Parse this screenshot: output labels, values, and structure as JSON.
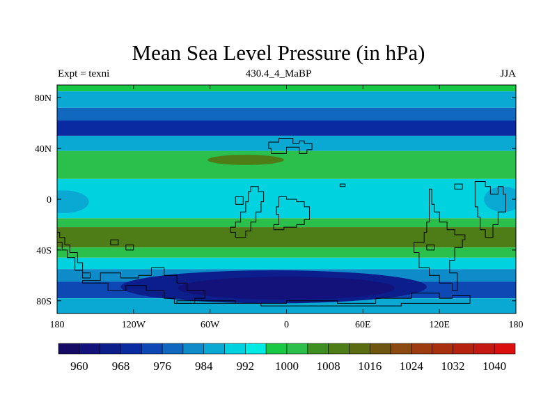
{
  "title": "Mean Sea Level Pressure (in hPa)",
  "left_label": "Expt = texni",
  "center_label": "430.4_4_MaBP",
  "right_label": "JJA",
  "chart_data": {
    "type": "heatmap",
    "title": "Mean Sea Level Pressure (in hPa)",
    "x_ticks": [
      "180",
      "120W",
      "60W",
      "0",
      "60E",
      "120E",
      "180"
    ],
    "y_ticks": [
      "80N",
      "40N",
      "0",
      "40S",
      "80S"
    ],
    "xlim": [
      -180,
      180
    ],
    "ylim": [
      -90,
      90
    ],
    "colorbar": {
      "levels": [
        956,
        960,
        964,
        968,
        972,
        976,
        980,
        984,
        988,
        992,
        996,
        1000,
        1004,
        1008,
        1012,
        1016,
        1020,
        1024,
        1028,
        1032,
        1036,
        1040,
        1044
      ],
      "labels": [
        "960",
        "968",
        "976",
        "984",
        "992",
        "1000",
        "1008",
        "1016",
        "1024",
        "1032",
        "1040"
      ],
      "colors": [
        "#160b64",
        "#12127a",
        "#0c1d8c",
        "#0a2aa2",
        "#0d48b4",
        "#1068bf",
        "#0d8cc9",
        "#0aa9d4",
        "#00d2e0",
        "#00ebe3",
        "#18c944",
        "#2bbf4b",
        "#3f8e22",
        "#4e7d18",
        "#5b6b10",
        "#6e5610",
        "#8a4a10",
        "#9c3c10",
        "#a8300f",
        "#b5230f",
        "#c41812",
        "#dc0f0f"
      ]
    },
    "bands": [
      {
        "lat_from": 90,
        "lat_to": 85,
        "value": 998
      },
      {
        "lat_from": 85,
        "lat_to": 72,
        "value": 986
      },
      {
        "lat_from": 72,
        "lat_to": 62,
        "value": 978
      },
      {
        "lat_from": 62,
        "lat_to": 50,
        "value": 970
      },
      {
        "lat_from": 50,
        "lat_to": 38,
        "value": 986
      },
      {
        "lat_from": 38,
        "lat_to": 16,
        "value": 1002
      },
      {
        "lat_from": 16,
        "lat_to": -15,
        "value": 990
      },
      {
        "lat_from": -15,
        "lat_to": -22,
        "value": 1002
      },
      {
        "lat_from": -22,
        "lat_to": -38,
        "value": 1010
      },
      {
        "lat_from": -38,
        "lat_to": -46,
        "value": 1002
      },
      {
        "lat_from": -46,
        "lat_to": -55,
        "value": 990
      },
      {
        "lat_from": -55,
        "lat_to": -65,
        "value": 982
      },
      {
        "lat_from": -65,
        "lat_to": -78,
        "value": 974
      },
      {
        "lat_from": -78,
        "lat_to": -90,
        "value": 984
      }
    ],
    "features": [
      {
        "name": "north-midlat-high",
        "lon": -32,
        "lat": 31,
        "rlon": 30,
        "rlat": 4,
        "value": 1010
      },
      {
        "name": "antarctic-low-core",
        "lon": -10,
        "lat": -69,
        "rlon": 120,
        "rlat": 13,
        "value": 966
      },
      {
        "name": "antarctic-low-inner",
        "lon": 0,
        "lat": -70,
        "rlon": 85,
        "rlat": 9,
        "value": 962
      },
      {
        "name": "west-equatorial-low",
        "lon": -175,
        "lat": -2,
        "rlon": 20,
        "rlat": 9,
        "value": 984
      },
      {
        "name": "east-equatorial-low",
        "lon": 170,
        "lat": 0,
        "rlon": 15,
        "rlat": 10,
        "value": 984
      }
    ],
    "coastlines": [
      {
        "name": "northern-continent",
        "lonlat": [
          [
            -14,
            45
          ],
          [
            -6,
            45
          ],
          [
            -6,
            48
          ],
          [
            5,
            48
          ],
          [
            5,
            44
          ],
          [
            10,
            44
          ],
          [
            10,
            46
          ],
          [
            14,
            46
          ],
          [
            14,
            44
          ],
          [
            20,
            44
          ],
          [
            20,
            39
          ],
          [
            16,
            39
          ],
          [
            16,
            36
          ],
          [
            10,
            36
          ],
          [
            10,
            41
          ],
          [
            0,
            41
          ],
          [
            0,
            36
          ],
          [
            -12,
            36
          ],
          [
            -12,
            40
          ],
          [
            -14,
            40
          ]
        ]
      },
      {
        "name": "island-20e",
        "lonlat": [
          [
            42,
            10
          ],
          [
            46,
            10
          ],
          [
            46,
            12
          ],
          [
            42,
            12
          ]
        ]
      },
      {
        "name": "central-landmass",
        "lonlat": [
          [
            -28,
            10
          ],
          [
            -22,
            10
          ],
          [
            -22,
            6
          ],
          [
            -18,
            6
          ],
          [
            -18,
            -2
          ],
          [
            -20,
            -2
          ],
          [
            -20,
            -10
          ],
          [
            -24,
            -10
          ],
          [
            -24,
            -18
          ],
          [
            -28,
            -18
          ],
          [
            -28,
            -25
          ],
          [
            -32,
            -25
          ],
          [
            -32,
            -30
          ],
          [
            -40,
            -30
          ],
          [
            -40,
            -26
          ],
          [
            -44,
            -26
          ],
          [
            -44,
            -22
          ],
          [
            -40,
            -22
          ],
          [
            -40,
            -18
          ],
          [
            -36,
            -18
          ],
          [
            -36,
            -10
          ],
          [
            -32,
            -10
          ],
          [
            -32,
            -2
          ],
          [
            -30,
            -2
          ],
          [
            -30,
            6
          ],
          [
            -28,
            6
          ]
        ]
      },
      {
        "name": "ring-continent",
        "lonlat": [
          [
            -6,
            2
          ],
          [
            0,
            2
          ],
          [
            0,
            0
          ],
          [
            8,
            0
          ],
          [
            8,
            -2
          ],
          [
            14,
            -2
          ],
          [
            14,
            -6
          ],
          [
            18,
            -6
          ],
          [
            18,
            -16
          ],
          [
            14,
            -16
          ],
          [
            14,
            -20
          ],
          [
            8,
            -20
          ],
          [
            8,
            -22
          ],
          [
            -2,
            -22
          ],
          [
            -2,
            -24
          ],
          [
            -10,
            -24
          ],
          [
            -10,
            -20
          ],
          [
            -6,
            -20
          ],
          [
            -6,
            -12
          ],
          [
            -8,
            -12
          ],
          [
            -8,
            -6
          ],
          [
            -6,
            -6
          ]
        ]
      },
      {
        "name": "east-continent",
        "lonlat": [
          [
            112,
            8
          ],
          [
            114,
            8
          ],
          [
            114,
            -4
          ],
          [
            116,
            -4
          ],
          [
            116,
            -10
          ],
          [
            120,
            -10
          ],
          [
            120,
            -18
          ],
          [
            126,
            -18
          ],
          [
            126,
            -24
          ],
          [
            132,
            -24
          ],
          [
            132,
            -28
          ],
          [
            140,
            -28
          ],
          [
            140,
            -32
          ],
          [
            138,
            -32
          ],
          [
            138,
            -38
          ],
          [
            132,
            -38
          ],
          [
            132,
            -48
          ],
          [
            128,
            -48
          ],
          [
            128,
            -58
          ],
          [
            134,
            -58
          ],
          [
            134,
            -72
          ],
          [
            130,
            -72
          ],
          [
            130,
            -66
          ],
          [
            120,
            -66
          ],
          [
            120,
            -60
          ],
          [
            112,
            -60
          ],
          [
            112,
            -54
          ],
          [
            104,
            -54
          ],
          [
            104,
            -42
          ],
          [
            100,
            -42
          ],
          [
            100,
            -34
          ],
          [
            108,
            -34
          ],
          [
            108,
            -26
          ],
          [
            110,
            -26
          ],
          [
            110,
            -18
          ],
          [
            112,
            -18
          ]
        ]
      },
      {
        "name": "far-east-land",
        "lonlat": [
          [
            148,
            14
          ],
          [
            156,
            14
          ],
          [
            156,
            10
          ],
          [
            160,
            10
          ],
          [
            160,
            4
          ],
          [
            166,
            4
          ],
          [
            166,
            10
          ],
          [
            170,
            10
          ],
          [
            170,
            4
          ],
          [
            172,
            4
          ],
          [
            172,
            -10
          ],
          [
            166,
            -10
          ],
          [
            166,
            -20
          ],
          [
            162,
            -20
          ],
          [
            162,
            -30
          ],
          [
            156,
            -30
          ],
          [
            156,
            -24
          ],
          [
            152,
            -24
          ],
          [
            152,
            -14
          ],
          [
            150,
            -14
          ],
          [
            150,
            -6
          ],
          [
            148,
            -6
          ]
        ]
      },
      {
        "name": "west-coast-land",
        "lonlat": [
          [
            -180,
            -26
          ],
          [
            -178,
            -26
          ],
          [
            -178,
            -30
          ],
          [
            -174,
            -30
          ],
          [
            -174,
            -36
          ],
          [
            -170,
            -36
          ],
          [
            -170,
            -42
          ],
          [
            -164,
            -42
          ],
          [
            -164,
            -50
          ],
          [
            -160,
            -50
          ],
          [
            -160,
            -58
          ],
          [
            -154,
            -58
          ],
          [
            -154,
            -62
          ],
          [
            -160,
            -62
          ],
          [
            -160,
            -56
          ],
          [
            -166,
            -56
          ],
          [
            -166,
            -46
          ],
          [
            -172,
            -46
          ],
          [
            -172,
            -40
          ],
          [
            -176,
            -40
          ],
          [
            -176,
            -34
          ],
          [
            -180,
            -34
          ]
        ]
      },
      {
        "name": "antarctic-block",
        "lonlat": [
          [
            -160,
            -64
          ],
          [
            -146,
            -64
          ],
          [
            -146,
            -58
          ],
          [
            -130,
            -58
          ],
          [
            -130,
            -62
          ],
          [
            -116,
            -62
          ],
          [
            -116,
            -60
          ],
          [
            -106,
            -60
          ],
          [
            -106,
            -54
          ],
          [
            -96,
            -54
          ],
          [
            -96,
            -60
          ],
          [
            -86,
            -60
          ],
          [
            -86,
            -66
          ],
          [
            -78,
            -66
          ],
          [
            -78,
            -72
          ],
          [
            -64,
            -72
          ],
          [
            -64,
            -78
          ],
          [
            -72,
            -78
          ],
          [
            -72,
            -82
          ],
          [
            -88,
            -82
          ],
          [
            -88,
            -78
          ],
          [
            -96,
            -78
          ],
          [
            -96,
            -72
          ],
          [
            -110,
            -72
          ],
          [
            -110,
            -68
          ],
          [
            -126,
            -68
          ],
          [
            -126,
            -72
          ],
          [
            -140,
            -72
          ],
          [
            -140,
            -66
          ],
          [
            -160,
            -66
          ]
        ]
      },
      {
        "name": "south-polar-coast",
        "lonlat": [
          [
            -86,
            -80
          ],
          [
            -40,
            -80
          ],
          [
            -40,
            -82
          ],
          [
            0,
            -82
          ],
          [
            0,
            -80
          ],
          [
            40,
            -80
          ],
          [
            40,
            -82
          ],
          [
            70,
            -82
          ],
          [
            70,
            -78
          ],
          [
            98,
            -78
          ],
          [
            98,
            -74
          ],
          [
            120,
            -74
          ],
          [
            120,
            -78
          ],
          [
            130,
            -78
          ],
          [
            130,
            -76
          ],
          [
            144,
            -76
          ],
          [
            144,
            -82
          ],
          [
            90,
            -82
          ],
          [
            90,
            -84
          ],
          [
            -20,
            -84
          ],
          [
            -20,
            -82
          ],
          [
            -86,
            -82
          ]
        ]
      },
      {
        "name": "small-isle-west",
        "lonlat": [
          [
            -138,
            -32
          ],
          [
            -132,
            -32
          ],
          [
            -132,
            -36
          ],
          [
            -138,
            -36
          ]
        ]
      },
      {
        "name": "small-isle-west2",
        "lonlat": [
          [
            -126,
            -36
          ],
          [
            -120,
            -36
          ],
          [
            -120,
            -40
          ],
          [
            -126,
            -40
          ]
        ]
      },
      {
        "name": "small-isle-atl",
        "lonlat": [
          [
            -40,
            2
          ],
          [
            -34,
            2
          ],
          [
            -34,
            -4
          ],
          [
            -40,
            -4
          ]
        ]
      },
      {
        "name": "small-isle-east",
        "lonlat": [
          [
            110,
            -36
          ],
          [
            116,
            -36
          ],
          [
            116,
            -40
          ],
          [
            110,
            -40
          ]
        ]
      },
      {
        "name": "tiny-isle-far-east",
        "lonlat": [
          [
            132,
            12
          ],
          [
            138,
            12
          ],
          [
            138,
            8
          ],
          [
            132,
            8
          ]
        ]
      }
    ]
  }
}
